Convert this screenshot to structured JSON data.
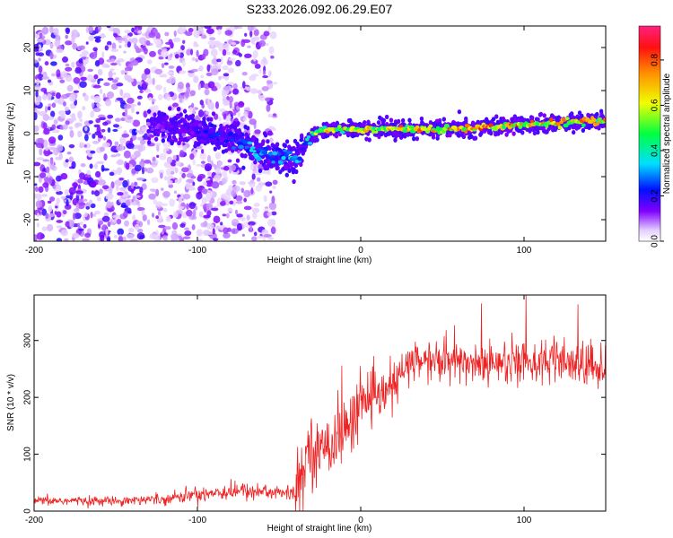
{
  "chart_data": [
    {
      "type": "heatmap",
      "title": "S233.2026.092.06.29.E07",
      "xlabel": "Height of straight line (km)",
      "ylabel": "Frequency (Hz)",
      "xlim": [
        -200,
        150
      ],
      "ylim": [
        -25,
        25
      ],
      "x_ticks": [
        -200,
        -100,
        0,
        100
      ],
      "x_tick_labels": [
        "-200",
        "-100",
        "0",
        "100"
      ],
      "y_ticks": [
        -20,
        -10,
        0,
        10,
        20
      ],
      "y_tick_labels": [
        "-20",
        "-10",
        "0",
        "10",
        "20"
      ],
      "colorbar": {
        "label": "Normalized spectral amplitude",
        "range": [
          0,
          0.95
        ],
        "ticks": [
          0.0,
          0.2,
          0.4,
          0.6,
          0.8
        ],
        "tick_labels": [
          "0.0",
          "0.2",
          "0.4",
          "0.6",
          "0.8"
        ]
      },
      "ridge": {
        "x": [
          -130,
          -100,
          -80,
          -65,
          -55,
          -45,
          -40,
          -35,
          -30,
          -20,
          0,
          50,
          100,
          150
        ],
        "freq": [
          2,
          1,
          -1,
          -4,
          -5,
          -6,
          -6,
          -3,
          0,
          1,
          1,
          1,
          2,
          3
        ],
        "amplitude": [
          0.15,
          0.18,
          0.25,
          0.35,
          0.3,
          0.3,
          0.4,
          0.3,
          0.5,
          0.65,
          0.7,
          0.75,
          0.75,
          0.7
        ]
      },
      "noise_region_x": [
        -200,
        -45
      ]
    },
    {
      "type": "line",
      "xlabel": "Height of straight line (km)",
      "ylabel": "SNR (10 * v/v)",
      "xlim": [
        -200,
        150
      ],
      "ylim": [
        0,
        380
      ],
      "x_ticks": [
        -200,
        -100,
        0,
        100
      ],
      "x_tick_labels": [
        "-200",
        "-100",
        "0",
        "100"
      ],
      "y_ticks": [
        0,
        100,
        200,
        300
      ],
      "y_tick_labels": [
        "0",
        "100",
        "200",
        "300"
      ],
      "color": "#ee2222",
      "series": [
        {
          "name": "SNR",
          "x": [
            -200,
            -150,
            -120,
            -100,
            -80,
            -60,
            -40,
            -36,
            -32,
            -28,
            -26,
            -22,
            -18,
            -10,
            -5,
            0,
            10,
            20,
            25,
            30,
            40,
            60,
            100,
            140,
            150
          ],
          "y": [
            18,
            18,
            22,
            30,
            35,
            35,
            30,
            60,
            120,
            110,
            90,
            120,
            120,
            140,
            160,
            200,
            195,
            220,
            240,
            260,
            265,
            260,
            265,
            255,
            250
          ]
        }
      ]
    }
  ]
}
